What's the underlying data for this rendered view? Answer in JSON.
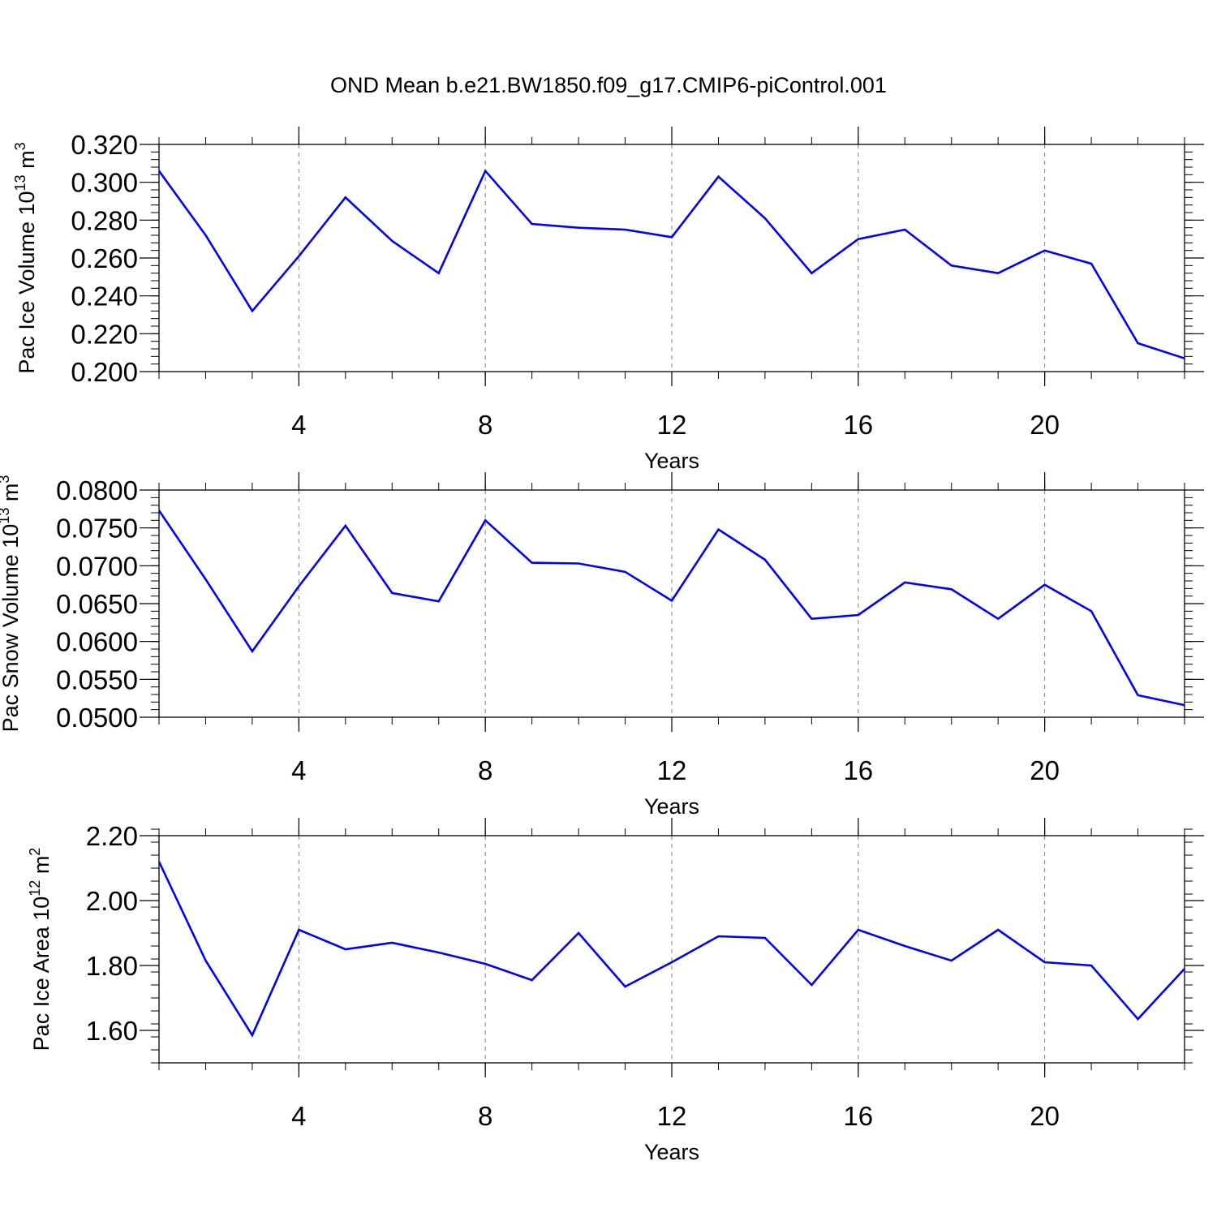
{
  "title": "OND Mean b.e21.BW1850.f09_g17.CMIP6-piControl.001",
  "colors": {
    "line": "#0000ff",
    "axis": "#000000",
    "grid": "#808080"
  },
  "chart_data": [
    {
      "type": "line",
      "xlabel": "Years",
      "ylabel": "Pac Ice Volume 10",
      "ylabel_exp": "13",
      "ylabel_unit": "m",
      "ylabel_unit_exp": "3",
      "xlim": [
        1,
        23
      ],
      "ylim": [
        0.2,
        0.32
      ],
      "xticks": [
        4,
        8,
        12,
        16,
        20
      ],
      "xtick_labels": [
        "4",
        "8",
        "12",
        "16",
        "20"
      ],
      "yticks": [
        0.2,
        0.22,
        0.24,
        0.26,
        0.28,
        0.3,
        0.32
      ],
      "ytick_labels": [
        "0.200",
        "0.220",
        "0.240",
        "0.260",
        "0.280",
        "0.300",
        "0.320"
      ],
      "grid": "vertical dashed at major x ticks",
      "series": [
        {
          "x": [
            1,
            2,
            3,
            4,
            5,
            6,
            7,
            8,
            9,
            10,
            11,
            12,
            13,
            14,
            15,
            16,
            17,
            18,
            19,
            20,
            21,
            22,
            23
          ],
          "values": [
            0.306,
            0.272,
            0.232,
            0.261,
            0.292,
            0.269,
            0.252,
            0.306,
            0.278,
            0.276,
            0.275,
            0.271,
            0.303,
            0.281,
            0.252,
            0.27,
            0.275,
            0.256,
            0.252,
            0.264,
            0.257,
            0.215,
            0.207
          ]
        }
      ]
    },
    {
      "type": "line",
      "xlabel": "Years",
      "ylabel": "Pac Snow Volume 10",
      "ylabel_exp": "13",
      "ylabel_unit": "m",
      "ylabel_unit_exp": "3",
      "xlim": [
        1,
        23
      ],
      "ylim": [
        0.05,
        0.08
      ],
      "xticks": [
        4,
        8,
        12,
        16,
        20
      ],
      "xtick_labels": [
        "4",
        "8",
        "12",
        "16",
        "20"
      ],
      "yticks": [
        0.05,
        0.055,
        0.06,
        0.065,
        0.07,
        0.075,
        0.08
      ],
      "ytick_labels": [
        "0.0500",
        "0.0550",
        "0.0600",
        "0.0650",
        "0.0700",
        "0.0750",
        "0.0800"
      ],
      "grid": "vertical dashed at major x ticks",
      "series": [
        {
          "x": [
            1,
            2,
            3,
            4,
            5,
            6,
            7,
            8,
            9,
            10,
            11,
            12,
            13,
            14,
            15,
            16,
            17,
            18,
            19,
            20,
            21,
            22,
            23
          ],
          "values": [
            0.0773,
            0.0682,
            0.0587,
            0.0673,
            0.0753,
            0.0664,
            0.0653,
            0.076,
            0.0704,
            0.0703,
            0.0692,
            0.0654,
            0.0748,
            0.0708,
            0.063,
            0.0635,
            0.0678,
            0.0669,
            0.063,
            0.0675,
            0.064,
            0.0529,
            0.0516
          ]
        }
      ]
    },
    {
      "type": "line",
      "xlabel": "Years",
      "ylabel": "Pac Ice Area 10",
      "ylabel_exp": "12",
      "ylabel_unit": "m",
      "ylabel_unit_exp": "2",
      "xlim": [
        1,
        23
      ],
      "ylim": [
        1.5,
        2.2
      ],
      "xticks": [
        4,
        8,
        12,
        16,
        20
      ],
      "xtick_labels": [
        "4",
        "8",
        "12",
        "16",
        "20"
      ],
      "yticks": [
        1.6,
        1.8,
        2.0,
        2.2
      ],
      "ytick_labels": [
        "1.60",
        "1.80",
        "2.00",
        "2.20"
      ],
      "grid": "vertical dashed at major x ticks",
      "series": [
        {
          "x": [
            1,
            2,
            3,
            4,
            5,
            6,
            7,
            8,
            9,
            10,
            11,
            12,
            13,
            14,
            15,
            16,
            17,
            18,
            19,
            20,
            21,
            22,
            23
          ],
          "values": [
            2.12,
            1.815,
            1.585,
            1.91,
            1.85,
            1.87,
            1.84,
            1.805,
            1.755,
            1.9,
            1.735,
            1.81,
            1.89,
            1.885,
            1.74,
            1.91,
            1.86,
            1.815,
            1.91,
            1.81,
            1.8,
            1.635,
            1.79
          ]
        }
      ]
    }
  ]
}
